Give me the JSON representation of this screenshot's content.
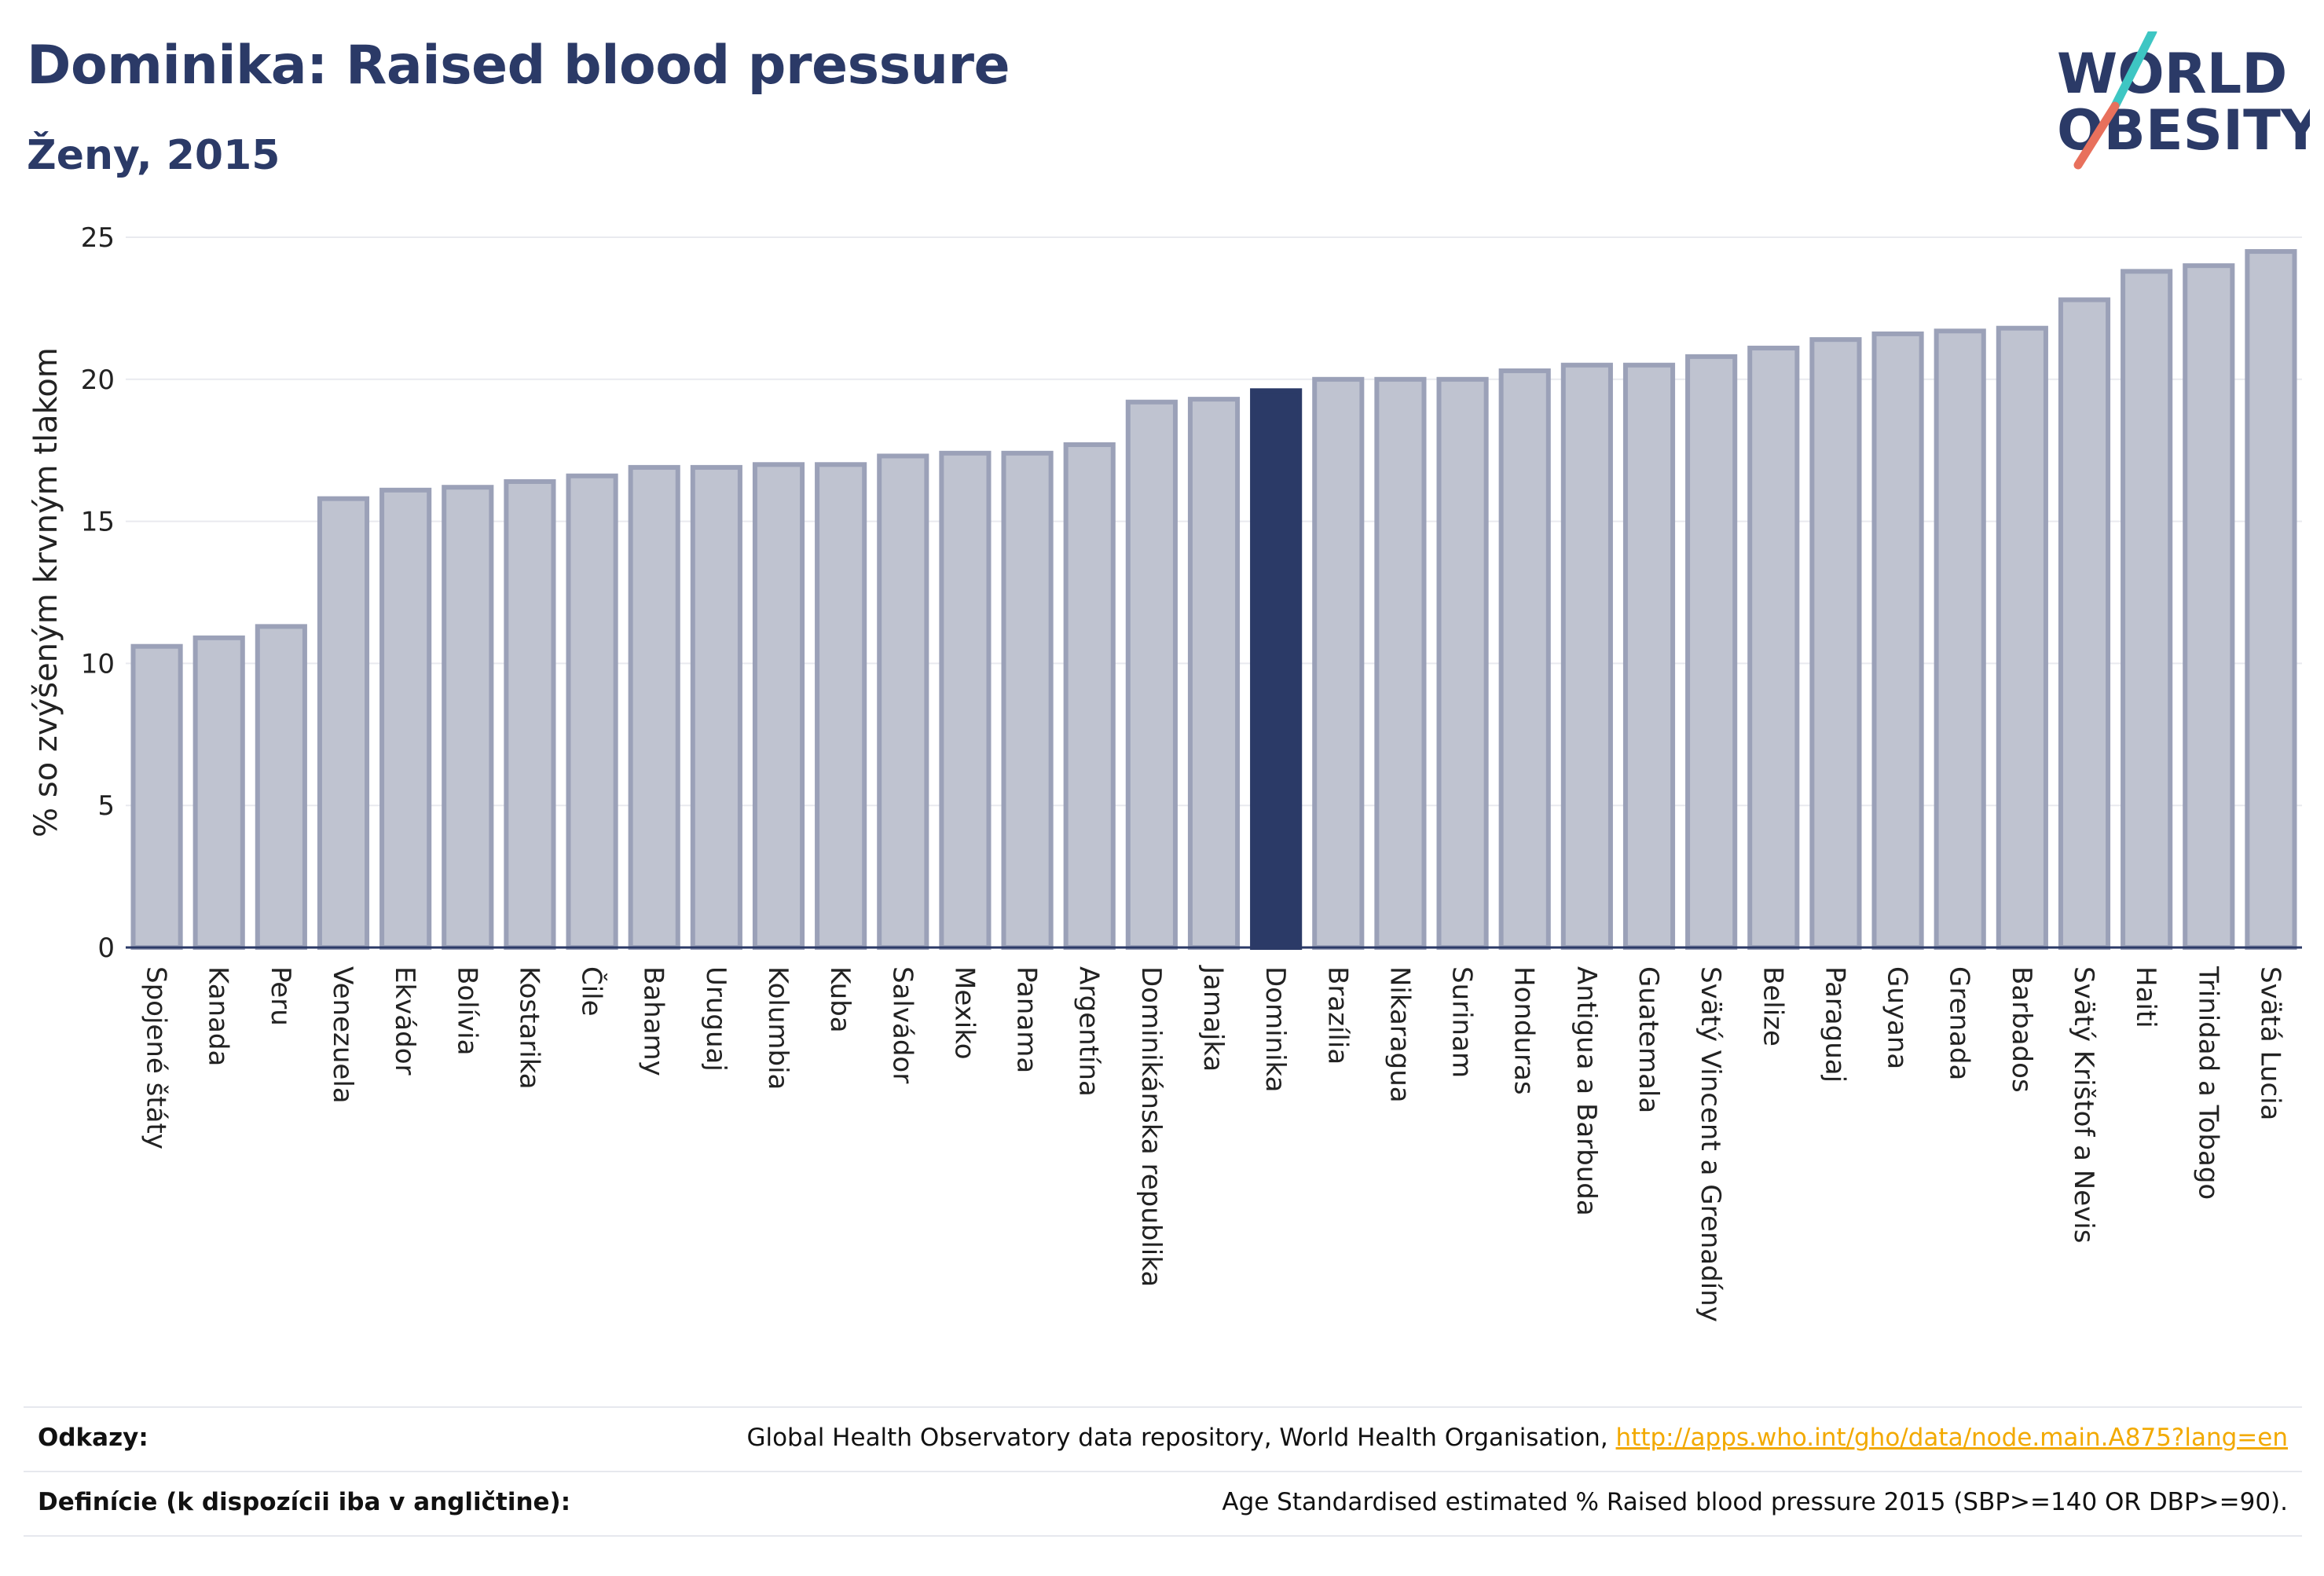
{
  "header": {
    "title": "Dominika: Raised blood pressure",
    "subtitle": "Ženy, 2015"
  },
  "logo": {
    "line1": "WORLD",
    "line2": "OBESITY"
  },
  "colors": {
    "bar": "#bfc3d0",
    "bar_edge": "#9ba1b8",
    "highlight": "#2b3a67",
    "text": "#2b3a67",
    "link": "#f2a900"
  },
  "chart_data": {
    "type": "bar",
    "ylabel": "% so zvýšeným krvným tlakom",
    "ylim": [
      0,
      25
    ],
    "yticks": [
      0,
      5,
      10,
      15,
      20,
      25
    ],
    "grid": true,
    "highlight": "Dominika",
    "categories": [
      "Spojené štáty",
      "Kanada",
      "Peru",
      "Venezuela",
      "Ekvádor",
      "Bolívia",
      "Kostarika",
      "Čile",
      "Bahamy",
      "Uruguaj",
      "Kolumbia",
      "Kuba",
      "Salvádor",
      "Mexiko",
      "Panama",
      "Argentína",
      "Dominikánska republika",
      "Jamajka",
      "Dominika",
      "Brazília",
      "Nikaragua",
      "Surinam",
      "Honduras",
      "Antigua a Barbuda",
      "Guatemala",
      "Svätý Vincent a Grenadíny",
      "Belize",
      "Paraguaj",
      "Guyana",
      "Grenada",
      "Barbados",
      "Svätý Krištof a Nevis",
      "Haiti",
      "Trinidad a Tobago",
      "Svätá Lucia"
    ],
    "values": [
      10.6,
      10.9,
      11.3,
      15.8,
      16.1,
      16.2,
      16.4,
      16.6,
      16.9,
      16.9,
      17.0,
      17.0,
      17.3,
      17.4,
      17.4,
      17.7,
      19.2,
      19.3,
      19.6,
      20.0,
      20.0,
      20.0,
      20.3,
      20.5,
      20.5,
      20.8,
      21.1,
      21.4,
      21.6,
      21.7,
      21.8,
      22.8,
      23.8,
      24.0,
      24.5
    ]
  },
  "footer": {
    "references_label": "Odkazy:",
    "references_text": "Global Health Observatory data repository, World Health Organisation, ",
    "references_link": "http://apps.who.int/gho/data/node.main.A875?lang=en",
    "definitions_label": "Definície (k dispozícii iba v angličtine):",
    "definitions_text": "Age Standardised estimated % Raised blood pressure 2015 (SBP>=140 OR DBP>=90)."
  }
}
